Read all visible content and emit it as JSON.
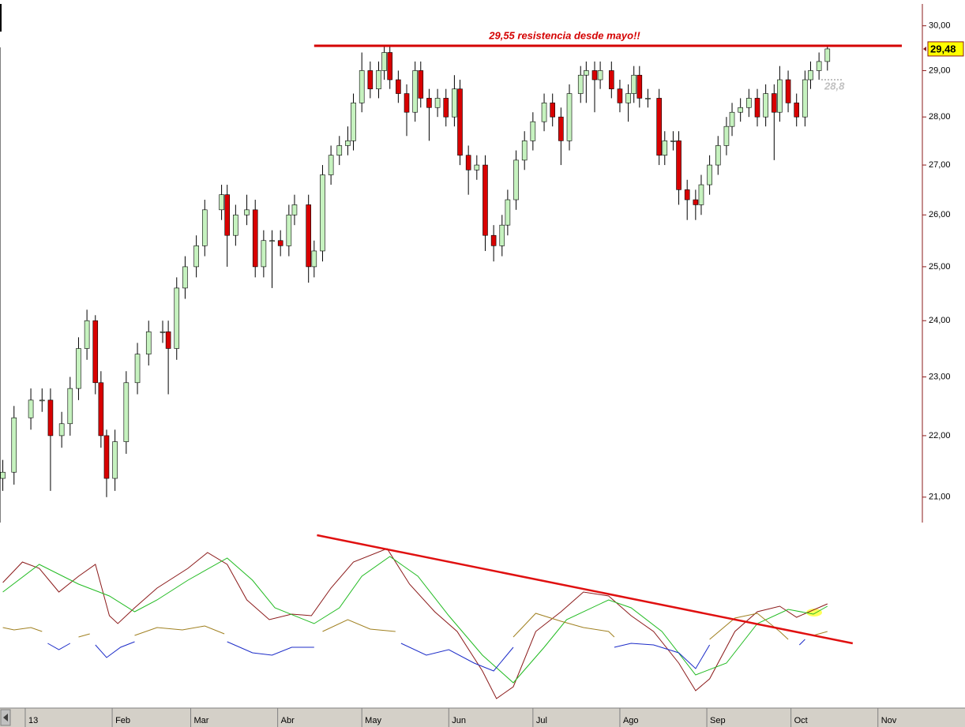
{
  "chart_data": [
    {
      "type": "candlestick",
      "log_scale": true,
      "up_color": "#c6f2bf",
      "down_color": "#d80000",
      "xlim": [
        -8,
        320
      ],
      "ylim": [
        20.6,
        30.5
      ],
      "xticks": [
        {
          "value": 1,
          "label": "13"
        },
        {
          "value": 32,
          "label": "Feb"
        },
        {
          "value": 60,
          "label": "Mar"
        },
        {
          "value": 91,
          "label": "Abr"
        },
        {
          "value": 121,
          "label": "May"
        },
        {
          "value": 152,
          "label": "Jun"
        },
        {
          "value": 182,
          "label": "Jul"
        },
        {
          "value": 213,
          "label": "Ago"
        },
        {
          "value": 244,
          "label": "Sep"
        },
        {
          "value": 274,
          "label": "Oct"
        },
        {
          "value": 305,
          "label": "Nov"
        }
      ],
      "yticks": [
        {
          "value": 21,
          "label": "21,00"
        },
        {
          "value": 22,
          "label": "22,00"
        },
        {
          "value": 23,
          "label": "23,00"
        },
        {
          "value": 24,
          "label": "24,00"
        },
        {
          "value": 25,
          "label": "25,00"
        },
        {
          "value": 26,
          "label": "26,00"
        },
        {
          "value": 27,
          "label": "27,00"
        },
        {
          "value": 28,
          "label": "28,00"
        },
        {
          "value": 29,
          "label": "29,00"
        },
        {
          "value": 30,
          "label": "30,00"
        }
      ],
      "x": [
        -7,
        -3,
        3,
        7,
        10,
        14,
        17,
        20,
        23,
        26,
        28,
        30,
        33,
        37,
        41,
        45,
        50,
        52,
        55,
        58,
        62,
        65,
        71,
        73,
        76,
        80,
        83,
        86,
        89,
        92,
        95,
        97,
        102,
        104,
        107,
        110,
        113,
        116,
        118,
        121,
        124,
        127,
        129,
        131,
        134,
        137,
        140,
        142,
        145,
        148,
        151,
        154,
        156,
        159,
        162,
        165,
        168,
        171,
        173,
        176,
        179,
        182,
        186,
        189,
        192,
        195,
        199,
        201,
        204,
        206,
        210,
        213,
        216,
        218,
        220,
        223,
        227,
        229,
        232,
        234,
        237,
        240,
        242,
        245,
        248,
        251,
        253,
        256,
        259,
        262,
        265,
        268,
        270,
        273,
        276,
        279,
        281,
        284,
        287
      ],
      "open": [
        21.3,
        21.4,
        22.3,
        22.6,
        22.6,
        22.0,
        22.2,
        22.8,
        23.5,
        24.0,
        22.9,
        22.0,
        21.3,
        21.9,
        22.9,
        23.4,
        23.8,
        23.8,
        23.5,
        24.6,
        25.0,
        25.4,
        26.1,
        26.4,
        25.6,
        26.0,
        26.1,
        25.0,
        25.5,
        25.5,
        25.4,
        26.0,
        26.2,
        25.0,
        25.3,
        26.8,
        27.2,
        27.4,
        27.5,
        28.3,
        29.0,
        28.6,
        29.0,
        29.4,
        28.8,
        28.5,
        28.1,
        29.0,
        28.4,
        28.2,
        28.4,
        28.0,
        28.6,
        27.2,
        26.9,
        27.0,
        25.6,
        25.4,
        25.8,
        26.3,
        27.1,
        27.5,
        27.9,
        28.3,
        28.0,
        27.5,
        28.5,
        28.9,
        29.0,
        28.8,
        29.0,
        28.6,
        28.3,
        28.5,
        28.9,
        28.4,
        28.4,
        27.2,
        27.5,
        27.5,
        26.5,
        26.3,
        26.2,
        26.6,
        27.0,
        27.4,
        27.8,
        28.1,
        28.2,
        28.4,
        28.0,
        28.5,
        28.1,
        28.8,
        28.3,
        28.0,
        28.8,
        29.0,
        29.2
      ],
      "high": [
        21.6,
        22.5,
        22.8,
        22.8,
        22.8,
        22.4,
        23.0,
        23.7,
        24.2,
        24.1,
        23.1,
        22.1,
        22.1,
        23.1,
        23.6,
        24.0,
        24.0,
        24.0,
        24.8,
        25.2,
        25.6,
        26.3,
        26.6,
        26.6,
        26.2,
        26.4,
        26.3,
        25.7,
        25.7,
        25.7,
        26.2,
        26.4,
        26.4,
        25.5,
        27.0,
        27.4,
        27.6,
        27.8,
        28.5,
        29.4,
        29.2,
        29.2,
        29.55,
        29.55,
        29.0,
        28.7,
        29.2,
        29.2,
        28.6,
        28.6,
        28.6,
        28.9,
        28.8,
        27.4,
        27.2,
        27.2,
        25.8,
        26.0,
        26.5,
        27.3,
        27.7,
        28.1,
        28.5,
        28.5,
        28.2,
        28.7,
        29.1,
        29.2,
        29.2,
        29.2,
        29.2,
        28.8,
        28.7,
        29.1,
        29.1,
        28.6,
        28.6,
        27.7,
        27.7,
        27.7,
        26.7,
        26.5,
        26.8,
        27.2,
        27.6,
        28.0,
        28.3,
        28.4,
        28.6,
        28.6,
        28.7,
        28.7,
        29.1,
        29.0,
        28.5,
        29.0,
        29.2,
        29.4,
        29.55
      ],
      "low": [
        21.1,
        21.2,
        22.1,
        22.4,
        21.1,
        21.8,
        22.0,
        22.6,
        23.3,
        22.7,
        21.8,
        21.0,
        21.1,
        21.7,
        22.7,
        23.2,
        23.6,
        22.7,
        23.3,
        24.4,
        24.8,
        25.2,
        25.9,
        25.0,
        25.4,
        25.8,
        24.8,
        24.8,
        24.6,
        25.2,
        25.2,
        25.8,
        24.7,
        24.8,
        25.1,
        26.6,
        27.0,
        27.2,
        27.3,
        28.1,
        28.4,
        28.4,
        28.8,
        28.6,
        28.3,
        27.6,
        27.9,
        28.2,
        27.5,
        28.0,
        27.8,
        27.8,
        27.0,
        26.4,
        26.7,
        25.3,
        25.1,
        25.2,
        25.6,
        26.1,
        26.9,
        27.3,
        27.7,
        27.8,
        27.0,
        27.3,
        28.3,
        28.3,
        28.1,
        28.6,
        28.4,
        28.1,
        27.9,
        28.3,
        28.2,
        28.2,
        27.0,
        27.0,
        27.3,
        26.2,
        25.9,
        25.9,
        26.0,
        26.4,
        26.8,
        27.2,
        27.6,
        27.9,
        28.0,
        27.8,
        27.8,
        27.1,
        27.9,
        28.1,
        27.8,
        27.8,
        28.6,
        28.8,
        29.0
      ],
      "close": [
        21.4,
        22.3,
        22.6,
        22.6,
        22.0,
        22.2,
        22.8,
        23.5,
        24.0,
        22.9,
        22.0,
        21.3,
        21.9,
        22.9,
        23.4,
        23.8,
        23.8,
        23.5,
        24.6,
        25.0,
        25.4,
        26.1,
        26.4,
        25.6,
        26.0,
        26.1,
        25.0,
        25.5,
        25.5,
        25.4,
        26.0,
        26.2,
        25.0,
        25.3,
        26.8,
        27.2,
        27.4,
        27.5,
        28.3,
        29.0,
        28.6,
        29.0,
        29.4,
        28.8,
        28.5,
        28.1,
        29.0,
        28.4,
        28.2,
        28.4,
        28.0,
        28.6,
        27.2,
        26.9,
        27.0,
        25.6,
        25.4,
        25.8,
        26.3,
        27.1,
        27.5,
        27.9,
        28.3,
        28.0,
        27.5,
        28.5,
        28.9,
        29.0,
        28.8,
        29.0,
        28.6,
        28.3,
        28.5,
        28.9,
        28.4,
        28.4,
        27.2,
        27.5,
        27.5,
        26.5,
        26.3,
        26.2,
        26.6,
        27.0,
        27.4,
        27.8,
        28.1,
        28.2,
        28.4,
        28.0,
        28.5,
        28.1,
        28.8,
        28.3,
        28.0,
        28.8,
        29.0,
        29.2,
        29.48
      ],
      "annotations": [
        {
          "value": 29.55,
          "label": "29,55 resistencia desde mayo!!",
          "color": "#d40000"
        },
        {
          "value": 29.48,
          "label": "29,48",
          "color": "#ffff00"
        },
        {
          "value": 28.8,
          "label": "28,8",
          "color": "#c0c0c0"
        }
      ]
    },
    {
      "type": "line",
      "xlim": [
        -8,
        320
      ],
      "ylim": [
        0,
        220
      ],
      "series": [
        {
          "color": "#8b1a1a",
          "x": [
            -7,
            0,
            6,
            13,
            20,
            26,
            31,
            34,
            40,
            48,
            59,
            66,
            73,
            80,
            88,
            96,
            103,
            110,
            118,
            130,
            138,
            147,
            155,
            164,
            169,
            175,
            183,
            192,
            200,
            209,
            217,
            225,
            234,
            240,
            245,
            254,
            262,
            270,
            276,
            287
          ],
          "values": [
            157,
            183,
            175,
            145,
            165,
            180,
            115,
            105,
            125,
            150,
            175,
            195,
            180,
            135,
            110,
            117,
            115,
            150,
            183,
            200,
            155,
            120,
            95,
            45,
            10,
            25,
            95,
            120,
            145,
            140,
            115,
            95,
            55,
            20,
            35,
            95,
            120,
            127,
            113,
            130
          ]
        },
        {
          "color": "#22bb22",
          "x": [
            -7,
            6,
            20,
            31,
            40,
            48,
            59,
            73,
            82,
            90,
            104,
            113,
            121,
            131,
            141,
            152,
            164,
            175,
            186,
            194,
            209,
            217,
            228,
            240,
            251,
            262,
            273,
            282,
            287
          ],
          "values": [
            145,
            180,
            155,
            140,
            120,
            135,
            160,
            188,
            160,
            125,
            105,
            125,
            165,
            190,
            165,
            115,
            65,
            30,
            75,
            110,
            135,
            125,
            95,
            40,
            55,
            105,
            123,
            117,
            127
          ]
        },
        {
          "color": "#a08020",
          "x": [
            -7,
            -3,
            3,
            7,
            13,
            20,
            24,
            32,
            40,
            48,
            57,
            65,
            72,
            90,
            107,
            116,
            124,
            133,
            150,
            175,
            183,
            192,
            200,
            209,
            211,
            228,
            245,
            254,
            262,
            270,
            273,
            277,
            282,
            287
          ],
          "values": [
            100,
            97,
            100,
            95,
            null,
            88,
            92,
            null,
            90,
            100,
            97,
            102,
            92,
            null,
            95,
            110,
            98,
            95,
            null,
            88,
            118,
            108,
            100,
            95,
            88,
            null,
            85,
            112,
            118,
            95,
            85,
            null,
            90,
            95
          ]
        },
        {
          "color": "#1c2cc8",
          "x": [
            9,
            13,
            17,
            21,
            26,
            30,
            35,
            40,
            60,
            73,
            82,
            89,
            96,
            104,
            115,
            135,
            144,
            152,
            161,
            168,
            175,
            195,
            211,
            217,
            225,
            234,
            240,
            245,
            260,
            277,
            279
          ],
          "values": [
            80,
            72,
            80,
            null,
            78,
            62,
            75,
            82,
            null,
            82,
            68,
            65,
            75,
            75,
            null,
            80,
            65,
            72,
            55,
            45,
            75,
            null,
            75,
            80,
            78,
            68,
            48,
            78,
            null,
            78,
            85
          ]
        },
        {
          "color": "#e01010",
          "x": [
            105,
            296
          ],
          "values": [
            217,
            80
          ]
        }
      ]
    }
  ]
}
